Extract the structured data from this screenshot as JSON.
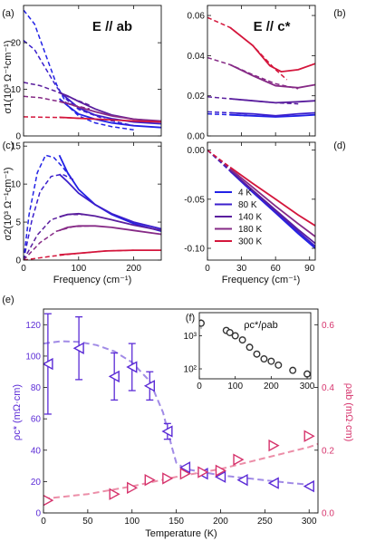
{
  "colors": {
    "4 K": "#2222e6",
    "80 K": "#3b1fcc",
    "140 K": "#5a1e9e",
    "180 K": "#862a86",
    "300 K": "#d4163c",
    "rho_c": "#5b2bd6",
    "rho_ab": "#d6336c"
  },
  "chart_data": [
    {
      "panel": "(a)",
      "type": "line",
      "annotation": "E // ab",
      "ylabel": "σ1(10³ Ω⁻¹cm⁻¹)",
      "xlim": [
        0,
        250
      ],
      "ylim": [
        0,
        28
      ],
      "xticks": [],
      "yticks": [
        0,
        10,
        20
      ],
      "series": [
        {
          "name": "4 K",
          "dashed_x": [
            0,
            20,
            40,
            60,
            80,
            100,
            130,
            160,
            200
          ],
          "dashed_y": [
            27,
            24,
            17.5,
            11,
            6.5,
            4.3,
            2.8,
            2.0,
            1.3
          ],
          "solid_x": [
            65,
            80,
            100,
            130,
            160,
            200,
            250
          ],
          "solid_y": [
            8.0,
            6.5,
            4.7,
            3.6,
            2.8,
            2.2,
            1.8
          ]
        },
        {
          "name": "80 K",
          "dashed_x": [
            0,
            20,
            40,
            60,
            80,
            100,
            150,
            200
          ],
          "dashed_y": [
            20.5,
            18.5,
            14.5,
            10.5,
            7.6,
            5.7,
            3.5,
            2.2
          ],
          "solid_x": [
            65,
            80,
            100,
            130,
            160,
            200,
            250
          ],
          "solid_y": [
            9.5,
            8.0,
            6.0,
            4.5,
            3.7,
            3.0,
            2.6
          ]
        },
        {
          "name": "140 K",
          "dashed_x": [
            0,
            30,
            60,
            90,
            120
          ],
          "dashed_y": [
            11.5,
            10.8,
            9.5,
            8.0,
            6.6
          ],
          "solid_x": [
            65,
            80,
            100,
            130,
            160,
            200,
            250
          ],
          "solid_y": [
            9.3,
            8.6,
            7.4,
            5.8,
            4.5,
            3.6,
            3.1
          ]
        },
        {
          "name": "180 K",
          "dashed_x": [
            0,
            30,
            60,
            90,
            120
          ],
          "dashed_y": [
            8.5,
            8.2,
            7.5,
            6.6,
            5.8
          ],
          "solid_x": [
            65,
            80,
            100,
            130,
            160,
            200,
            250
          ],
          "solid_y": [
            7.4,
            7.0,
            6.2,
            5.2,
            4.3,
            3.6,
            3.2
          ]
        },
        {
          "name": "300 K",
          "dashed_x": [
            0,
            40,
            80,
            120
          ],
          "dashed_y": [
            4.1,
            4.0,
            3.9,
            3.7
          ],
          "solid_x": [
            65,
            100,
            150,
            200,
            250
          ],
          "solid_y": [
            4.0,
            3.8,
            3.5,
            3.2,
            3.0
          ]
        }
      ]
    },
    {
      "panel": "(b)",
      "type": "line",
      "annotation": "E // c*",
      "ylabel": "",
      "xlim": [
        0,
        95
      ],
      "ylim": [
        0,
        0.065
      ],
      "xticks": [],
      "yticks": [
        0.0,
        0.02,
        0.04,
        0.06
      ],
      "series": [
        {
          "name": "4 K",
          "dashed_x": [
            0,
            20,
            35
          ],
          "dashed_y": [
            0.011,
            0.0105,
            0.01
          ],
          "solid_x": [
            20,
            40,
            60,
            80,
            95
          ],
          "solid_y": [
            0.0105,
            0.01,
            0.0095,
            0.01,
            0.0105
          ]
        },
        {
          "name": "80 K",
          "dashed_x": [
            0,
            20,
            35
          ],
          "dashed_y": [
            0.012,
            0.0115,
            0.011
          ],
          "solid_x": [
            20,
            40,
            60,
            80,
            95
          ],
          "solid_y": [
            0.0115,
            0.011,
            0.01,
            0.011,
            0.0115
          ]
        },
        {
          "name": "140 K",
          "dashed_x": [
            0,
            20,
            40,
            60,
            80
          ],
          "dashed_y": [
            0.0195,
            0.0185,
            0.0175,
            0.0165,
            0.016
          ],
          "solid_x": [
            20,
            40,
            60,
            80,
            95
          ],
          "solid_y": [
            0.0185,
            0.0175,
            0.0165,
            0.017,
            0.0175
          ]
        },
        {
          "name": "180 K",
          "dashed_x": [
            0,
            20,
            40,
            60,
            80
          ],
          "dashed_y": [
            0.039,
            0.0355,
            0.0305,
            0.026,
            0.0235
          ],
          "solid_x": [
            20,
            40,
            60,
            80,
            95
          ],
          "solid_y": [
            0.0355,
            0.03,
            0.025,
            0.024,
            0.0255
          ]
        },
        {
          "name": "300 K",
          "dashed_x": [
            0,
            20,
            40,
            60,
            70
          ],
          "dashed_y": [
            0.059,
            0.054,
            0.045,
            0.033,
            0.028
          ],
          "solid_x": [
            20,
            40,
            55,
            65,
            80,
            95
          ],
          "solid_y": [
            0.054,
            0.045,
            0.035,
            0.032,
            0.033,
            0.036
          ]
        }
      ]
    },
    {
      "panel": "(c)",
      "type": "line",
      "annotation": "",
      "ylabel": "σ2(10³ Ω⁻¹cm⁻¹)",
      "xlabel": "Frequency (cm⁻¹)",
      "xlim": [
        0,
        250
      ],
      "ylim": [
        0,
        15.5
      ],
      "xticks": [
        0,
        100,
        200
      ],
      "yticks": [
        0,
        5,
        10,
        15
      ],
      "series": [
        {
          "name": "4 K",
          "dashed_x": [
            0,
            10,
            25,
            40,
            55,
            70,
            90
          ],
          "dashed_y": [
            0,
            6,
            11.5,
            13.8,
            13.5,
            12.3,
            10.5
          ],
          "solid_x": [
            65,
            80,
            100,
            130,
            160,
            200,
            250
          ],
          "solid_y": [
            13.8,
            11.5,
            9.3,
            7.3,
            6.0,
            4.8,
            3.8
          ]
        },
        {
          "name": "80 K",
          "dashed_x": [
            0,
            15,
            30,
            50,
            70,
            90
          ],
          "dashed_y": [
            0,
            5.2,
            9.0,
            11.0,
            11.3,
            10.6
          ],
          "solid_x": [
            65,
            80,
            100,
            130,
            160,
            200,
            250
          ],
          "solid_y": [
            11.3,
            10.3,
            8.8,
            7.3,
            6.1,
            5.0,
            4.1
          ]
        },
        {
          "name": "140 K",
          "dashed_x": [
            0,
            25,
            50,
            80,
            110
          ],
          "dashed_y": [
            0,
            3.3,
            5.3,
            6.0,
            6.0
          ],
          "solid_x": [
            65,
            80,
            100,
            130,
            160,
            200,
            250
          ],
          "solid_y": [
            5.7,
            6.0,
            6.1,
            5.8,
            5.3,
            4.6,
            3.9
          ]
        },
        {
          "name": "180 K",
          "dashed_x": [
            0,
            30,
            60,
            90,
            120
          ],
          "dashed_y": [
            0,
            2.3,
            3.8,
            4.4,
            4.5
          ],
          "solid_x": [
            65,
            80,
            100,
            130,
            160,
            200,
            250
          ],
          "solid_y": [
            3.9,
            4.3,
            4.5,
            4.5,
            4.3,
            3.9,
            3.4
          ]
        },
        {
          "name": "300 K",
          "dashed_x": [
            0,
            50,
            100,
            150,
            200
          ],
          "dashed_y": [
            0,
            0.5,
            0.9,
            1.2,
            1.3
          ],
          "solid_x": [
            65,
            100,
            150,
            200,
            250
          ],
          "solid_y": [
            0.7,
            0.9,
            1.2,
            1.3,
            1.3
          ]
        }
      ]
    },
    {
      "panel": "(d)",
      "type": "line",
      "annotation": "",
      "ylabel": "",
      "xlabel": "Frequency (cm⁻¹)",
      "xlim": [
        0,
        95
      ],
      "ylim": [
        -0.112,
        0.008
      ],
      "xticks": [
        0,
        30,
        60,
        90
      ],
      "yticks": [
        0.0,
        -0.05,
        -0.1
      ],
      "legend": [
        "4 K",
        "80 K",
        "140 K",
        "180 K",
        "300 K"
      ],
      "series": [
        {
          "name": "4 K",
          "dashed_x": [
            0,
            20,
            30
          ],
          "dashed_y": [
            0,
            -0.0215,
            -0.032
          ],
          "solid_x": [
            20,
            40,
            60,
            80,
            95
          ],
          "solid_y": [
            -0.0215,
            -0.043,
            -0.064,
            -0.085,
            -0.1
          ]
        },
        {
          "name": "80 K",
          "dashed_x": [
            0,
            20,
            30
          ],
          "dashed_y": [
            0,
            -0.021,
            -0.0315
          ],
          "solid_x": [
            20,
            40,
            60,
            80,
            95
          ],
          "solid_y": [
            -0.021,
            -0.042,
            -0.063,
            -0.083,
            -0.098
          ]
        },
        {
          "name": "140 K",
          "dashed_x": [
            0,
            20,
            30
          ],
          "dashed_y": [
            0,
            -0.0205,
            -0.031
          ],
          "solid_x": [
            20,
            40,
            60,
            80,
            95
          ],
          "solid_y": [
            -0.0205,
            -0.041,
            -0.061,
            -0.081,
            -0.095
          ]
        },
        {
          "name": "180 K",
          "dashed_x": [
            0,
            20,
            30
          ],
          "dashed_y": [
            0,
            -0.019,
            -0.0285
          ],
          "solid_x": [
            20,
            40,
            60,
            80,
            95
          ],
          "solid_y": [
            -0.019,
            -0.038,
            -0.057,
            -0.075,
            -0.088
          ]
        },
        {
          "name": "300 K",
          "dashed_x": [
            0,
            20,
            30
          ],
          "dashed_y": [
            0,
            -0.0175,
            -0.026
          ],
          "solid_x": [
            20,
            40,
            60,
            80,
            95
          ],
          "solid_y": [
            -0.0175,
            -0.034,
            -0.05,
            -0.066,
            -0.077
          ]
        }
      ]
    },
    {
      "panel": "(e)",
      "type": "scatter",
      "xlabel": "Temperature (K)",
      "xlim": [
        0,
        310
      ],
      "xticks": [
        0,
        50,
        100,
        150,
        200,
        250,
        300
      ],
      "ylabel": "ρc* (mΩ·cm)",
      "ylim": [
        0,
        130
      ],
      "yticks": [
        0,
        20,
        40,
        60,
        80,
        100,
        120
      ],
      "y2label": "ρab (mΩ·cm)",
      "y2lim": [
        0,
        0.65
      ],
      "y2ticks": [
        0.0,
        0.2,
        0.4,
        0.6
      ],
      "series": [
        {
          "name": "ρc*",
          "axis": "left",
          "marker": "left-triangle",
          "x": [
            5,
            40,
            80,
            100,
            120,
            140,
            160,
            180,
            200,
            225,
            260,
            300
          ],
          "y": [
            95,
            105,
            87,
            93,
            81,
            52,
            29,
            25,
            23,
            21,
            19,
            17
          ],
          "yerr": [
            32,
            20,
            15,
            15,
            9,
            5,
            2,
            1.5,
            1.5,
            1.5,
            1.5,
            1.5
          ],
          "fit_x": [
            0,
            20,
            40,
            60,
            80,
            100,
            120,
            135,
            145,
            150,
            160,
            180,
            200,
            240,
            280,
            300
          ],
          "fit_y": [
            108,
            109.5,
            109,
            107,
            103,
            96,
            84,
            64,
            42,
            32,
            28,
            26,
            24,
            21.5,
            19,
            18
          ]
        },
        {
          "name": "ρab",
          "axis": "right",
          "marker": "right-triangle",
          "x": [
            5,
            80,
            100,
            120,
            140,
            160,
            180,
            200,
            220,
            260,
            300
          ],
          "y": [
            0.04,
            0.06,
            0.08,
            0.105,
            0.11,
            0.125,
            0.13,
            0.135,
            0.17,
            0.215,
            0.245
          ],
          "fit_x": [
            0,
            50,
            100,
            150,
            200,
            250,
            300,
            310
          ],
          "fit_y": [
            0.045,
            0.06,
            0.085,
            0.115,
            0.14,
            0.175,
            0.21,
            0.22
          ]
        }
      ]
    },
    {
      "panel": "(f)",
      "type": "scatter",
      "title": "ρc*/ρab",
      "xlim": [
        0,
        310
      ],
      "xticks": [
        0,
        100,
        200,
        300
      ],
      "yscale": "log",
      "ylim": [
        50,
        5000
      ],
      "yticks": [
        100,
        1000
      ],
      "x": [
        5,
        75,
        85,
        100,
        120,
        140,
        160,
        180,
        200,
        220,
        260,
        300
      ],
      "y": [
        2400,
        1450,
        1250,
        1000,
        750,
        450,
        280,
        200,
        170,
        130,
        90,
        70
      ],
      "yerr": [
        800,
        250,
        200,
        0,
        0,
        0,
        0,
        0,
        0,
        0,
        0,
        0
      ]
    }
  ]
}
